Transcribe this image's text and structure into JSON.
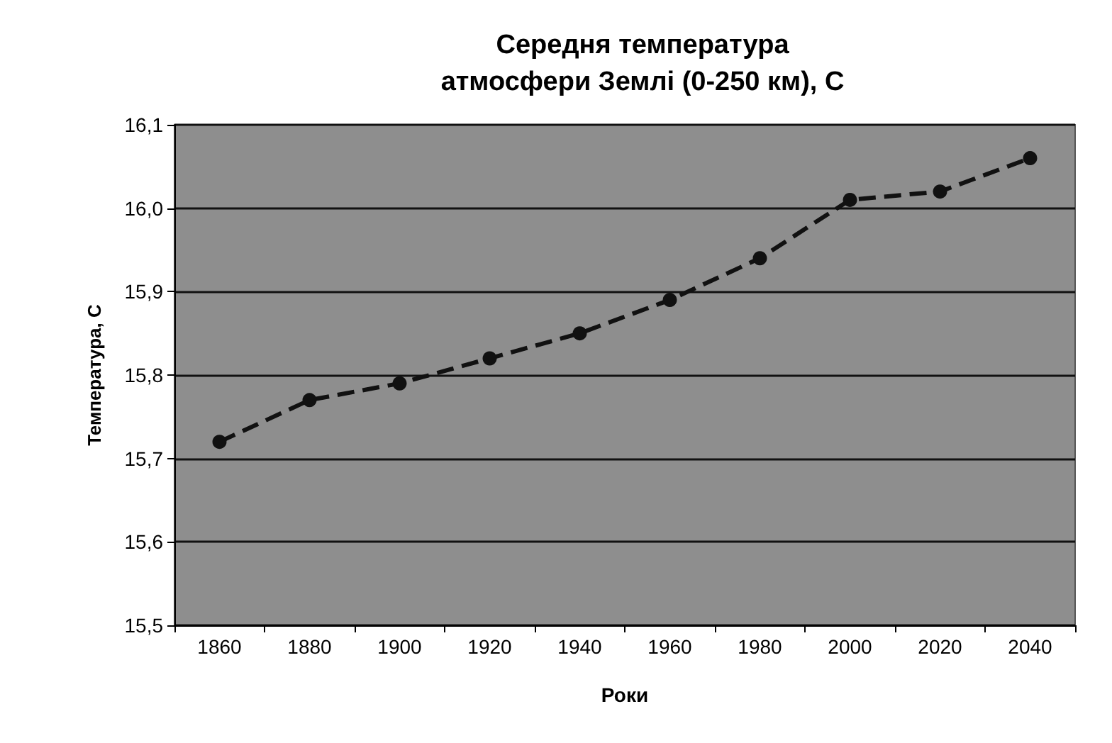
{
  "chart_data": {
    "type": "line",
    "title": "Середня температура\nатмосфери Землі (0-250 км), С",
    "xlabel": "Роки",
    "ylabel": "Температура, С",
    "categories": [
      "1860",
      "1880",
      "1900",
      "1920",
      "1940",
      "1960",
      "1980",
      "2000",
      "2020",
      "2040"
    ],
    "series": [
      {
        "color": "#111111",
        "values": [
          15.72,
          15.77,
          15.79,
          15.82,
          15.85,
          15.89,
          15.94,
          16.01,
          16.02,
          16.06
        ]
      }
    ],
    "ylim": [
      15.5,
      16.1
    ],
    "yticks": [
      {
        "value": 15.5,
        "label": "15,5"
      },
      {
        "value": 15.6,
        "label": "15,6"
      },
      {
        "value": 15.7,
        "label": "15,7"
      },
      {
        "value": 15.8,
        "label": "15,8"
      },
      {
        "value": 15.9,
        "label": "15,9"
      },
      {
        "value": 16.0,
        "label": "16,0"
      },
      {
        "value": 16.1,
        "label": "16,1"
      }
    ],
    "grid": "y",
    "marker": "circle",
    "line_style": "dashed"
  }
}
